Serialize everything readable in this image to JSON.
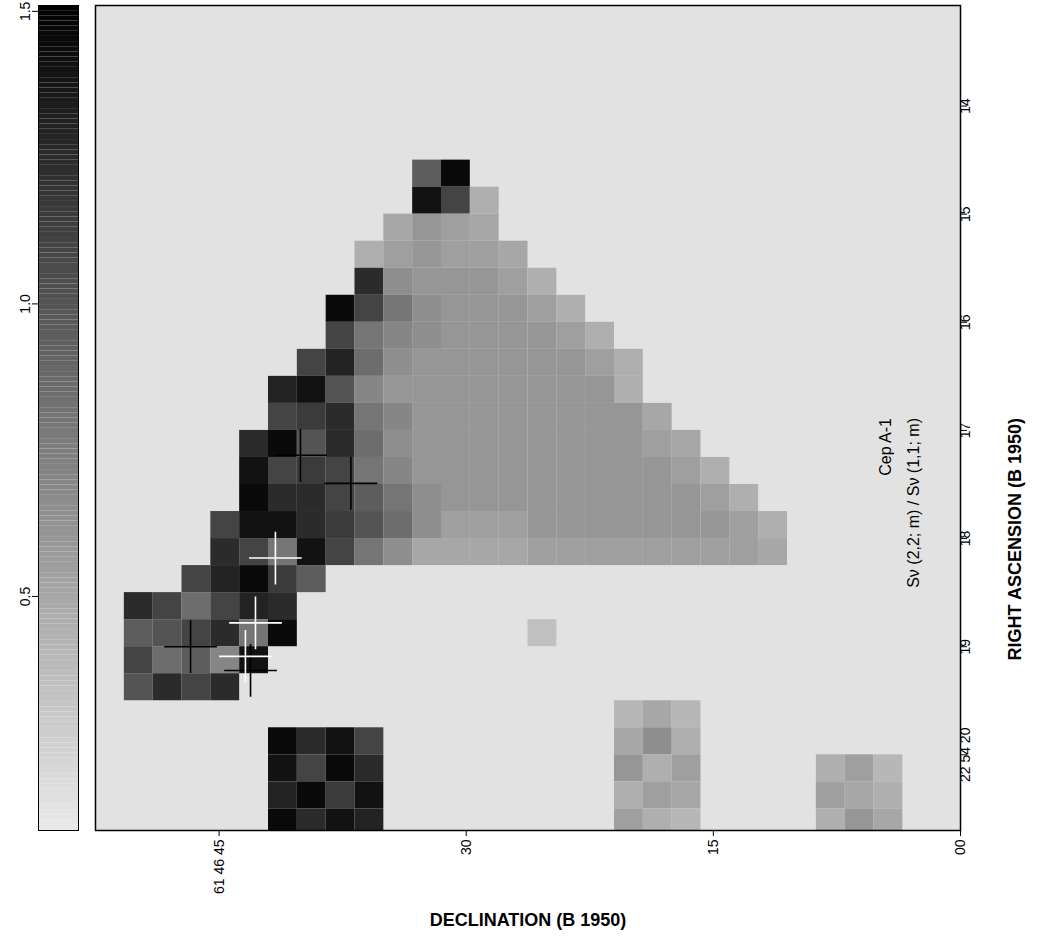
{
  "chart_data": {
    "type": "heatmap",
    "title": "Cep A-1",
    "subtitle": "Sν (2,2; m) / Sν (1,1; m)",
    "x_label": "DECLINATION (B 1950)",
    "y_label": "RIGHT ASCENSION (B 1950)",
    "xlim": [
      52.5,
      0
    ],
    "xticks": [
      {
        "value": 45,
        "label": "61 46 45"
      },
      30,
      15,
      {
        "value": 0,
        "label": "00"
      }
    ],
    "ylim": [
      20.7,
      13.07
    ],
    "yticks": [
      {
        "value": 20,
        "label": "22 54 20"
      },
      19,
      18,
      17,
      16,
      15,
      14
    ],
    "x": [
      51.625,
      49.875,
      48.125,
      46.375,
      44.625,
      42.875,
      41.125,
      39.375,
      37.625,
      35.875,
      34.125,
      32.375,
      30.625,
      28.875,
      27.125,
      25.375,
      23.625,
      21.875,
      20.125,
      18.375,
      16.625,
      14.875,
      13.125,
      11.375,
      9.625,
      7.875,
      6.125,
      4.375,
      2.625,
      0.875
    ],
    "y": [
      13.125,
      13.375,
      13.625,
      13.875,
      14.125,
      14.375,
      14.625,
      14.875,
      15.125,
      15.375,
      15.625,
      15.875,
      16.125,
      16.375,
      16.625,
      16.875,
      17.125,
      17.375,
      17.625,
      17.875,
      18.125,
      18.375,
      18.625,
      18.875,
      19.125,
      19.375,
      19.625,
      19.875,
      20.125,
      20.375,
      20.625
    ],
    "values": [
      [
        null,
        null,
        null,
        null,
        null,
        null,
        null,
        null,
        null,
        null,
        null,
        null,
        null,
        null,
        null,
        null,
        null,
        null,
        null,
        null,
        null,
        null,
        null,
        null,
        null,
        null,
        null,
        null,
        null,
        null
      ],
      [
        null,
        null,
        null,
        null,
        null,
        null,
        null,
        null,
        null,
        null,
        null,
        null,
        null,
        null,
        null,
        null,
        null,
        null,
        null,
        null,
        null,
        null,
        null,
        null,
        null,
        null,
        null,
        null,
        null,
        null
      ],
      [
        null,
        null,
        null,
        null,
        null,
        null,
        null,
        null,
        null,
        null,
        null,
        null,
        null,
        null,
        null,
        null,
        null,
        null,
        null,
        null,
        null,
        null,
        null,
        null,
        null,
        null,
        null,
        null,
        null,
        null
      ],
      [
        null,
        null,
        null,
        null,
        null,
        null,
        null,
        null,
        null,
        null,
        null,
        null,
        null,
        null,
        null,
        null,
        null,
        null,
        null,
        null,
        null,
        null,
        null,
        null,
        null,
        null,
        null,
        null,
        null,
        null
      ],
      [
        null,
        null,
        null,
        null,
        null,
        null,
        null,
        null,
        null,
        null,
        null,
        null,
        null,
        null,
        null,
        null,
        null,
        null,
        null,
        null,
        null,
        null,
        null,
        null,
        null,
        null,
        null,
        null,
        null,
        null
      ],
      [
        null,
        null,
        null,
        null,
        null,
        null,
        null,
        null,
        null,
        null,
        null,
        null,
        null,
        null,
        null,
        null,
        null,
        null,
        null,
        null,
        null,
        null,
        null,
        null,
        null,
        null,
        null,
        null,
        null,
        null
      ],
      [
        null,
        null,
        null,
        null,
        null,
        null,
        null,
        null,
        null,
        null,
        null,
        0.95,
        1.45,
        null,
        null,
        null,
        null,
        null,
        null,
        null,
        null,
        null,
        null,
        null,
        null,
        null,
        null,
        null,
        null,
        null
      ],
      [
        null,
        null,
        null,
        null,
        null,
        null,
        null,
        null,
        null,
        null,
        null,
        1.4,
        1.1,
        0.45,
        null,
        null,
        null,
        null,
        null,
        null,
        null,
        null,
        null,
        null,
        null,
        null,
        null,
        null,
        null,
        null
      ],
      [
        null,
        null,
        null,
        null,
        null,
        null,
        null,
        null,
        null,
        null,
        0.5,
        0.6,
        0.55,
        0.5,
        null,
        null,
        null,
        null,
        null,
        null,
        null,
        null,
        null,
        null,
        null,
        null,
        null,
        null,
        null,
        null
      ],
      [
        null,
        null,
        null,
        null,
        null,
        null,
        null,
        null,
        null,
        0.45,
        0.55,
        0.6,
        0.55,
        0.55,
        0.5,
        null,
        null,
        null,
        null,
        null,
        null,
        null,
        null,
        null,
        null,
        null,
        null,
        null,
        null,
        null
      ],
      [
        null,
        null,
        null,
        null,
        null,
        null,
        null,
        null,
        null,
        1.25,
        0.65,
        0.6,
        0.6,
        0.6,
        0.55,
        0.45,
        null,
        null,
        null,
        null,
        null,
        null,
        null,
        null,
        null,
        null,
        null,
        null,
        null,
        null
      ],
      [
        null,
        null,
        null,
        null,
        null,
        null,
        null,
        null,
        1.45,
        1.1,
        0.8,
        0.65,
        0.6,
        0.6,
        0.6,
        0.55,
        0.45,
        null,
        null,
        null,
        null,
        null,
        null,
        null,
        null,
        null,
        null,
        null,
        null,
        null
      ],
      [
        null,
        null,
        null,
        null,
        null,
        null,
        null,
        null,
        1.1,
        0.8,
        0.7,
        0.65,
        0.6,
        0.6,
        0.6,
        0.6,
        0.55,
        0.45,
        null,
        null,
        null,
        null,
        null,
        null,
        null,
        null,
        null,
        null,
        null,
        null
      ],
      [
        null,
        null,
        null,
        null,
        null,
        null,
        null,
        1.1,
        1.3,
        0.85,
        0.65,
        0.6,
        0.6,
        0.6,
        0.6,
        0.6,
        0.6,
        0.55,
        0.45,
        null,
        null,
        null,
        null,
        null,
        null,
        null,
        null,
        null,
        null,
        null
      ],
      [
        null,
        null,
        null,
        null,
        null,
        null,
        1.3,
        1.4,
        1.0,
        0.7,
        0.6,
        0.6,
        0.6,
        0.6,
        0.6,
        0.6,
        0.6,
        0.6,
        0.45,
        null,
        null,
        null,
        null,
        null,
        null,
        null,
        null,
        null,
        null,
        null
      ],
      [
        null,
        null,
        null,
        null,
        null,
        null,
        1.1,
        1.15,
        1.25,
        0.8,
        0.7,
        0.6,
        0.6,
        0.6,
        0.6,
        0.6,
        0.6,
        0.6,
        0.6,
        0.5,
        null,
        null,
        null,
        null,
        null,
        null,
        null,
        null,
        null,
        null
      ],
      [
        null,
        null,
        null,
        null,
        null,
        1.25,
        1.45,
        1.0,
        1.25,
        0.85,
        0.65,
        0.6,
        0.6,
        0.6,
        0.6,
        0.6,
        0.6,
        0.6,
        0.6,
        0.55,
        0.5,
        null,
        null,
        null,
        null,
        null,
        null,
        null,
        null,
        null
      ],
      [
        null,
        null,
        null,
        null,
        null,
        1.4,
        1.1,
        1.15,
        1.1,
        0.8,
        0.7,
        0.6,
        0.6,
        0.6,
        0.6,
        0.6,
        0.6,
        0.6,
        0.6,
        0.6,
        0.55,
        0.45,
        null,
        null,
        null,
        null,
        null,
        null,
        null,
        null
      ],
      [
        null,
        null,
        null,
        null,
        null,
        1.45,
        1.25,
        1.25,
        1.1,
        0.95,
        0.8,
        0.65,
        0.6,
        0.6,
        0.6,
        0.6,
        0.6,
        0.6,
        0.6,
        0.6,
        0.6,
        0.55,
        0.45,
        null,
        null,
        null,
        null,
        null,
        null,
        null
      ],
      [
        null,
        null,
        null,
        null,
        1.1,
        1.4,
        1.4,
        1.25,
        1.15,
        1.0,
        0.85,
        0.65,
        0.55,
        0.55,
        0.55,
        0.6,
        0.6,
        0.6,
        0.6,
        0.6,
        0.6,
        0.6,
        0.55,
        0.45,
        null,
        null,
        null,
        null,
        null,
        null
      ],
      [
        null,
        null,
        null,
        null,
        1.25,
        1.1,
        0.8,
        1.4,
        1.1,
        0.8,
        0.65,
        0.5,
        0.5,
        0.5,
        0.5,
        0.55,
        0.55,
        0.55,
        0.55,
        0.55,
        0.55,
        0.55,
        0.55,
        0.5,
        null,
        null,
        null,
        null,
        null,
        null
      ],
      [
        null,
        null,
        null,
        1.1,
        1.3,
        1.45,
        1.15,
        0.95,
        null,
        null,
        null,
        null,
        null,
        null,
        null,
        null,
        null,
        null,
        null,
        null,
        null,
        null,
        null,
        null,
        null,
        null,
        null,
        null,
        null,
        null
      ],
      [
        null,
        1.25,
        1.1,
        0.85,
        1.1,
        1.3,
        1.25,
        null,
        null,
        null,
        null,
        null,
        null,
        null,
        null,
        null,
        null,
        null,
        null,
        null,
        null,
        null,
        null,
        null,
        null,
        null,
        null,
        null,
        null,
        null
      ],
      [
        null,
        0.95,
        1.0,
        1.1,
        1.25,
        0.8,
        1.45,
        null,
        null,
        null,
        null,
        null,
        null,
        null,
        null,
        0.35,
        null,
        null,
        null,
        null,
        null,
        null,
        null,
        null,
        null,
        null,
        null,
        null,
        null,
        null
      ],
      [
        null,
        1.1,
        0.85,
        0.95,
        0.7,
        1.4,
        null,
        null,
        null,
        null,
        null,
        null,
        null,
        null,
        null,
        null,
        null,
        null,
        null,
        null,
        null,
        null,
        null,
        null,
        null,
        null,
        null,
        null,
        null,
        null
      ],
      [
        null,
        1.0,
        1.25,
        1.1,
        1.25,
        null,
        null,
        null,
        null,
        null,
        null,
        null,
        null,
        null,
        null,
        null,
        null,
        null,
        null,
        null,
        null,
        null,
        null,
        null,
        null,
        null,
        null,
        null,
        null,
        null
      ],
      [
        null,
        null,
        null,
        null,
        null,
        null,
        null,
        null,
        null,
        null,
        null,
        null,
        null,
        null,
        null,
        null,
        null,
        null,
        0.4,
        0.5,
        0.4,
        null,
        null,
        null,
        null,
        null,
        null,
        null,
        null,
        null
      ],
      [
        null,
        null,
        null,
        null,
        null,
        null,
        1.45,
        1.25,
        1.4,
        1.1,
        null,
        null,
        null,
        null,
        null,
        null,
        null,
        null,
        0.5,
        0.65,
        0.45,
        null,
        null,
        null,
        null,
        null,
        null,
        null,
        null,
        null
      ],
      [
        null,
        null,
        null,
        null,
        null,
        null,
        1.4,
        1.1,
        1.45,
        1.25,
        null,
        null,
        null,
        null,
        null,
        null,
        null,
        null,
        0.6,
        0.45,
        0.55,
        null,
        null,
        null,
        null,
        0.45,
        0.55,
        0.4,
        null,
        null
      ],
      [
        null,
        null,
        null,
        null,
        null,
        null,
        1.3,
        1.45,
        1.15,
        1.4,
        null,
        null,
        null,
        null,
        null,
        null,
        null,
        null,
        0.45,
        0.55,
        0.5,
        null,
        null,
        null,
        null,
        0.55,
        0.5,
        0.45,
        null,
        null
      ],
      [
        null,
        null,
        null,
        null,
        null,
        null,
        1.45,
        1.25,
        1.4,
        1.3,
        null,
        null,
        null,
        null,
        null,
        null,
        null,
        null,
        0.55,
        0.45,
        0.4,
        null,
        null,
        null,
        null,
        0.45,
        0.6,
        0.5,
        null,
        null
      ]
    ],
    "colorbar": {
      "range": [
        0.1,
        1.51
      ],
      "ticks": [
        0.5,
        {
          "value": 1,
          "label": "1.0"
        },
        1.5
      ]
    },
    "markers": {
      "marker": "plus",
      "x": [
        37.0,
        40.06,
        41.58,
        42.79,
        46.73,
        43.4,
        43.09
      ],
      "y": [
        17.49,
        17.23,
        18.18,
        18.78,
        19.0,
        19.09,
        19.22
      ],
      "colors": [
        "black",
        "black",
        "white",
        "white",
        "black",
        "white",
        "black"
      ]
    }
  }
}
